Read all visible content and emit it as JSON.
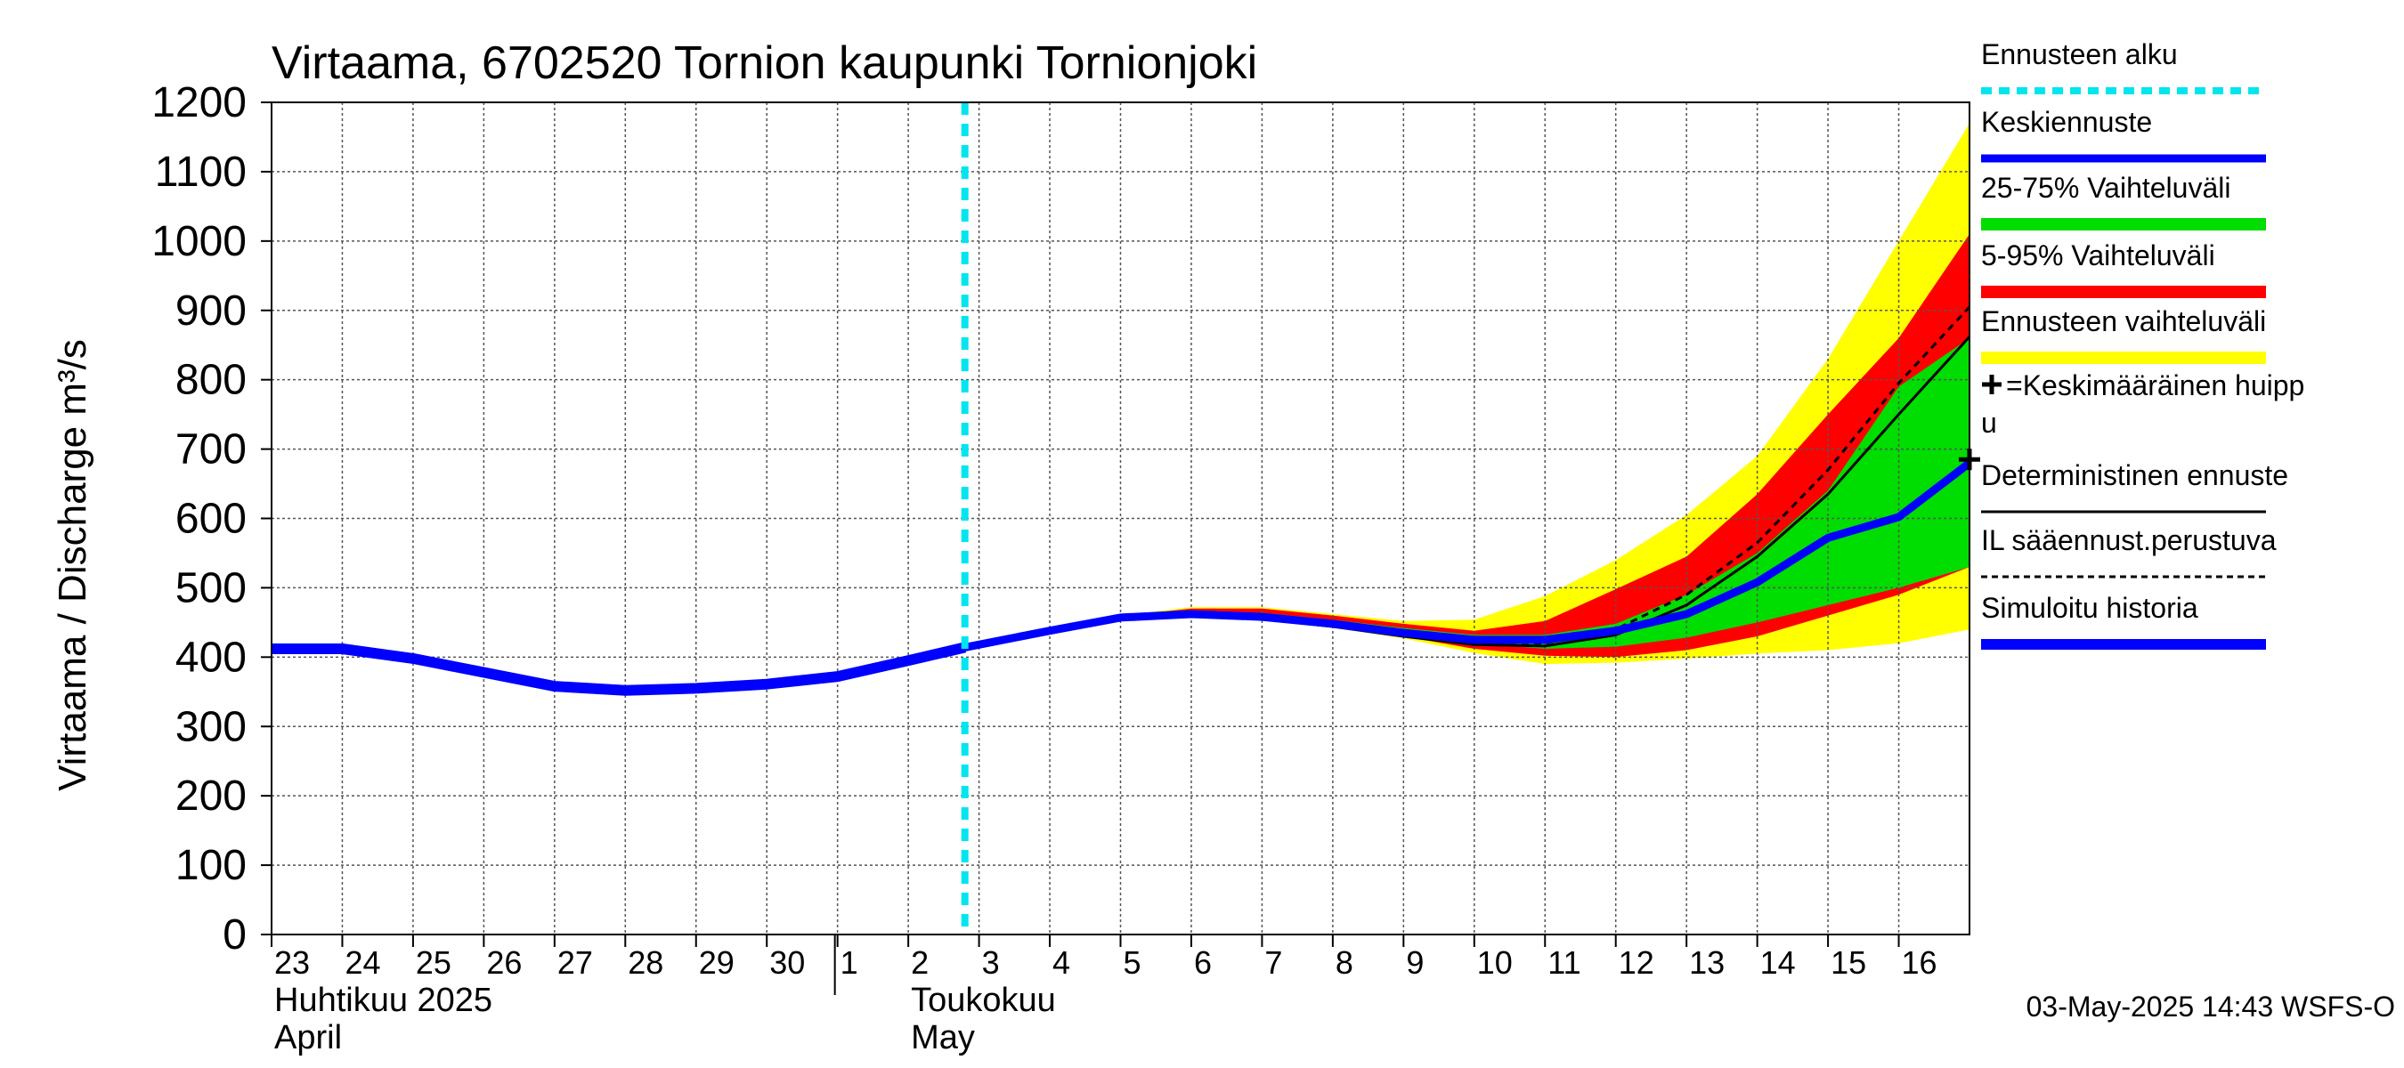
{
  "chart_data": {
    "type": "area",
    "title": "Virtaama, 6702520 Tornion kaupunki Tornionjoki",
    "ylabel": "Virtaama / Discharge    m³/s",
    "ylim": [
      0,
      1200
    ],
    "yticks": [
      0,
      100,
      200,
      300,
      400,
      500,
      600,
      700,
      800,
      900,
      1000,
      1100,
      1200
    ],
    "x_start_day": 23,
    "x_end_day": 47,
    "day_labels": [
      {
        "day": 23,
        "label": "23"
      },
      {
        "day": 24,
        "label": "24"
      },
      {
        "day": 25,
        "label": "25"
      },
      {
        "day": 26,
        "label": "26"
      },
      {
        "day": 27,
        "label": "27"
      },
      {
        "day": 28,
        "label": "28"
      },
      {
        "day": 29,
        "label": "29"
      },
      {
        "day": 30,
        "label": "30"
      },
      {
        "day": 31,
        "label": "1"
      },
      {
        "day": 32,
        "label": "2"
      },
      {
        "day": 33,
        "label": "3"
      },
      {
        "day": 34,
        "label": "4"
      },
      {
        "day": 35,
        "label": "5"
      },
      {
        "day": 36,
        "label": "6"
      },
      {
        "day": 37,
        "label": "7"
      },
      {
        "day": 38,
        "label": "8"
      },
      {
        "day": 39,
        "label": "9"
      },
      {
        "day": 40,
        "label": "10"
      },
      {
        "day": 41,
        "label": "11"
      },
      {
        "day": 42,
        "label": "12"
      },
      {
        "day": 43,
        "label": "13"
      },
      {
        "day": 44,
        "label": "14"
      },
      {
        "day": 45,
        "label": "15"
      },
      {
        "day": 46,
        "label": "16"
      }
    ],
    "month_labels": [
      {
        "day": 23,
        "fi": "Huhtikuu  2025",
        "en": "April"
      },
      {
        "day": 32,
        "fi": "Toukokuu",
        "en": "May"
      }
    ],
    "month_divider_day": 31,
    "forecast_start_day": 32.8,
    "simulated_history": {
      "name": "Simuloitu historia",
      "x": [
        23,
        24,
        25,
        26,
        27,
        28,
        29,
        30,
        31,
        32,
        32.8
      ],
      "y": [
        412,
        412,
        398,
        378,
        358,
        352,
        355,
        361,
        372,
        395,
        414
      ]
    },
    "full_range": {
      "name": "Ennusteen vaihteluväli",
      "x": [
        32.8,
        33,
        34,
        35,
        36,
        37,
        38,
        39,
        40,
        41,
        42,
        43,
        44,
        45,
        46,
        47
      ],
      "upper": [
        414,
        418,
        440,
        460,
        472,
        472,
        462,
        452,
        454,
        488,
        540,
        605,
        690,
        830,
        1000,
        1170
      ],
      "lower": [
        414,
        417,
        437,
        457,
        462,
        457,
        443,
        427,
        406,
        390,
        392,
        398,
        405,
        410,
        420,
        440
      ]
    },
    "range_5_95": {
      "name": "5-95% Vaihteluväli",
      "x": [
        32.8,
        33,
        34,
        35,
        36,
        37,
        38,
        39,
        40,
        41,
        42,
        43,
        44,
        45,
        46,
        47
      ],
      "upper": [
        414,
        418,
        439,
        459,
        470,
        470,
        460,
        448,
        438,
        452,
        498,
        545,
        635,
        750,
        860,
        1010
      ],
      "lower": [
        414,
        417,
        438,
        458,
        463,
        458,
        445,
        430,
        412,
        402,
        400,
        410,
        430,
        460,
        490,
        530
      ]
    },
    "range_25_75": {
      "name": "25-75% Vaihteluväli",
      "x": [
        32.8,
        33,
        34,
        35,
        36,
        37,
        38,
        39,
        40,
        41,
        42,
        43,
        44,
        45,
        46,
        47
      ],
      "upper": [
        414,
        418,
        438,
        458,
        466,
        464,
        454,
        442,
        432,
        432,
        448,
        490,
        550,
        640,
        790,
        860
      ],
      "lower": [
        414,
        418,
        437,
        457,
        464,
        459,
        447,
        433,
        420,
        412,
        415,
        428,
        450,
        475,
        500,
        530
      ]
    },
    "mean_forecast": {
      "name": "Keskiennuste",
      "x": [
        32.8,
        33,
        34,
        35,
        36,
        37,
        38,
        39,
        40,
        41,
        42,
        43,
        44,
        45,
        46,
        47
      ],
      "y": [
        414,
        418,
        438,
        457,
        462,
        458,
        448,
        435,
        425,
        425,
        438,
        462,
        508,
        572,
        602,
        680
      ]
    },
    "deterministic_forecast": {
      "name": "Deterministinen ennuste",
      "x": [
        32.8,
        33,
        34,
        35,
        36,
        37,
        38,
        39,
        40,
        41,
        42,
        43,
        44,
        45,
        46,
        47
      ],
      "y": [
        414,
        418,
        437,
        456,
        460,
        455,
        444,
        430,
        418,
        416,
        432,
        475,
        545,
        635,
        750,
        862
      ]
    },
    "il_forecast": {
      "name": "IL sääennust.perustuva",
      "x": [
        32.8,
        33,
        34,
        35,
        36,
        37,
        38,
        39,
        40,
        41,
        42,
        43,
        44,
        45,
        46,
        47
      ],
      "y": [
        414,
        418,
        438,
        457,
        461,
        456,
        446,
        433,
        422,
        420,
        440,
        490,
        565,
        670,
        795,
        905
      ]
    },
    "mean_peak": {
      "x": 47,
      "y": 685
    },
    "legend": {
      "placement": "right",
      "entries": [
        {
          "label": "Ennusteen alku",
          "style": "dashed",
          "color": "#00e5ee"
        },
        {
          "label": "Keskiennuste",
          "style": "line",
          "color": "#0000ff"
        },
        {
          "label": "25-75% Vaihteluväli",
          "style": "band",
          "color": "#00dd00"
        },
        {
          "label": "5-95% Vaihteluväli",
          "style": "band",
          "color": "#ff0000"
        },
        {
          "label": "Ennusteen vaihteluväli",
          "style": "band",
          "color": "#ffff00"
        },
        {
          "label": "=Keskimääräinen huipp",
          "label2": "u",
          "style": "cross",
          "color": "#000000"
        },
        {
          "label": "Deterministinen ennuste",
          "style": "thin",
          "color": "#000000"
        },
        {
          "label": "IL sääennust.perustuva",
          "style": "dotted",
          "color": "#000000"
        },
        {
          "label": "Simuloitu historia",
          "style": "thick",
          "color": "#0000ff"
        }
      ]
    },
    "timestamp": "03-May-2025 14:43 WSFS-O",
    "colors": {
      "full_range": "#ffff00",
      "range_5_95": "#ff0000",
      "range_25_75": "#00dd00",
      "mean": "#0000ff",
      "history": "#0000ff",
      "forecast_start": "#00e5ee",
      "grid": "#555555"
    }
  }
}
